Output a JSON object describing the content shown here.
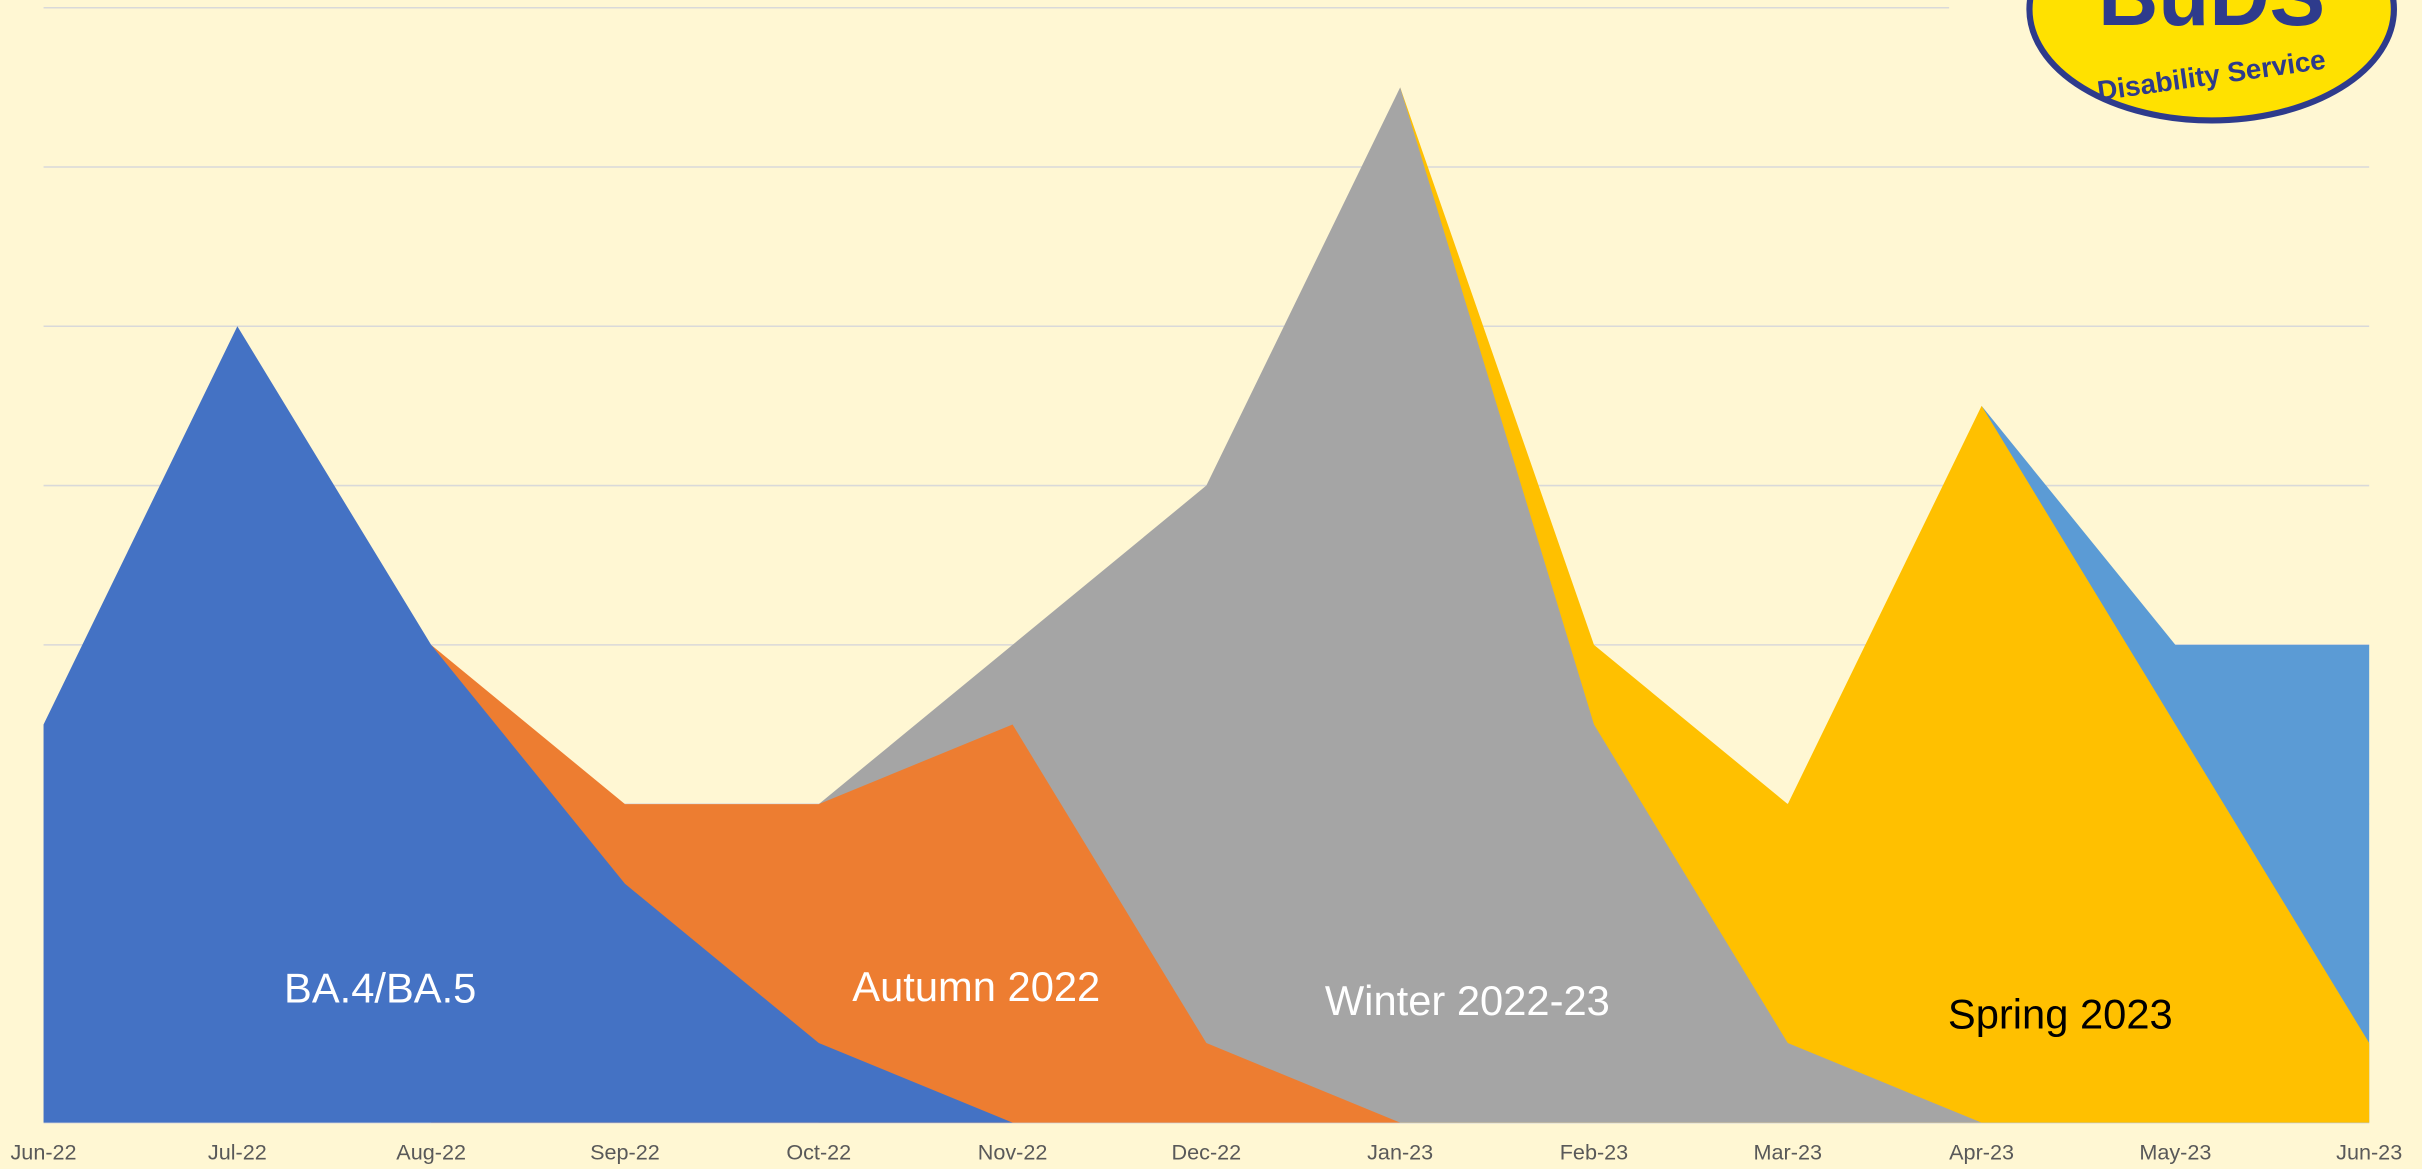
{
  "chart_data": {
    "type": "area",
    "categories": [
      "Jun-22",
      "Jul-22",
      "Aug-22",
      "Sep-22",
      "Oct-22",
      "Nov-22",
      "Dec-22",
      "Jan-23",
      "Feb-23",
      "Mar-23",
      "Apr-23",
      "May-23",
      "Jun-23"
    ],
    "series": [
      {
        "name": "BA.4/BA.5",
        "color": "#4472c4",
        "values": [
          2.5,
          5,
          3,
          1.5,
          0.5,
          0,
          null,
          null,
          null,
          null,
          null,
          null,
          null
        ]
      },
      {
        "name": "Autumn 2022",
        "color": "#ed7d31",
        "values": [
          null,
          null,
          3,
          2,
          2,
          2.5,
          0.5,
          0,
          null,
          null,
          null,
          null,
          null
        ]
      },
      {
        "name": "Winter 2022-23",
        "color": "#a5a5a5",
        "values": [
          null,
          null,
          null,
          null,
          2,
          3,
          4,
          6.5,
          2.5,
          0.5,
          0,
          null,
          null
        ]
      },
      {
        "name": "Spring 2023",
        "color": "#ffc000",
        "values": [
          null,
          null,
          null,
          null,
          null,
          null,
          null,
          6.5,
          3,
          2,
          4.5,
          2.5,
          0.5
        ]
      },
      {
        "color": "#5b9bd5",
        "values": [
          null,
          null,
          null,
          null,
          null,
          null,
          null,
          null,
          null,
          null,
          4.5,
          3,
          3
        ]
      }
    ],
    "ylim": [
      0,
      7
    ],
    "yticks": [
      0,
      1,
      2,
      3,
      4,
      5,
      6,
      7
    ],
    "grid": true
  },
  "logo": {
    "title": "BuDS",
    "subtitle": "Disability Service"
  }
}
